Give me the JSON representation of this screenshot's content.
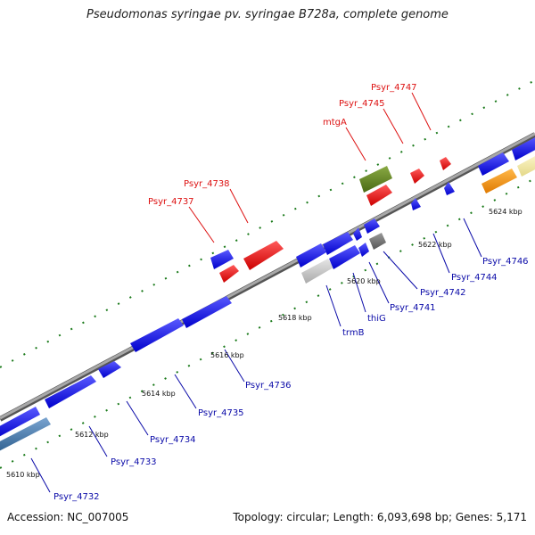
{
  "title": "Pseudomonas syringae pv. syringae B728a, complete genome",
  "footer": {
    "accession": "Accession: NC_007005",
    "stats": "Topology: circular; Length: 6,093,698 bp; Genes: 5,171"
  },
  "colors": {
    "backbone": "#8a8a8a",
    "tick": "#1a7a1a",
    "label_red": "#dd1111",
    "label_blue": "#0a0aa8",
    "gene_red": "#ee1111",
    "gene_blue": "#1111ee",
    "gene_green": "#6a8a2a",
    "gene_gray": "#777777",
    "gene_lightgray": "#cccccc",
    "gene_orange": "#ff9a1a",
    "gene_cream": "#f4eba0",
    "gene_steelblue": "#4a7fb5"
  },
  "scale_labels": [
    {
      "text": "5610 kbp"
    },
    {
      "text": "5612 kbp"
    },
    {
      "text": "5614 kbp"
    },
    {
      "text": "5616 kbp"
    },
    {
      "text": "5618 kbp"
    },
    {
      "text": "5620 kbp"
    },
    {
      "text": "5622 kbp"
    },
    {
      "text": "5624 kbp"
    }
  ],
  "gene_labels_top": [
    {
      "text": "Psyr_4737"
    },
    {
      "text": "Psyr_4738"
    },
    {
      "text": "mtgA"
    },
    {
      "text": "Psyr_4745"
    },
    {
      "text": "Psyr_4747"
    }
  ],
  "gene_labels_bottom": [
    {
      "text": "Psyr_4732"
    },
    {
      "text": "Psyr_4733"
    },
    {
      "text": "Psyr_4734"
    },
    {
      "text": "Psyr_4735"
    },
    {
      "text": "Psyr_4736"
    },
    {
      "text": "trmB"
    },
    {
      "text": "thiG"
    },
    {
      "text": "Psyr_4741"
    },
    {
      "text": "Psyr_4742"
    },
    {
      "text": "Psyr_4744"
    },
    {
      "text": "Psyr_4746"
    }
  ]
}
